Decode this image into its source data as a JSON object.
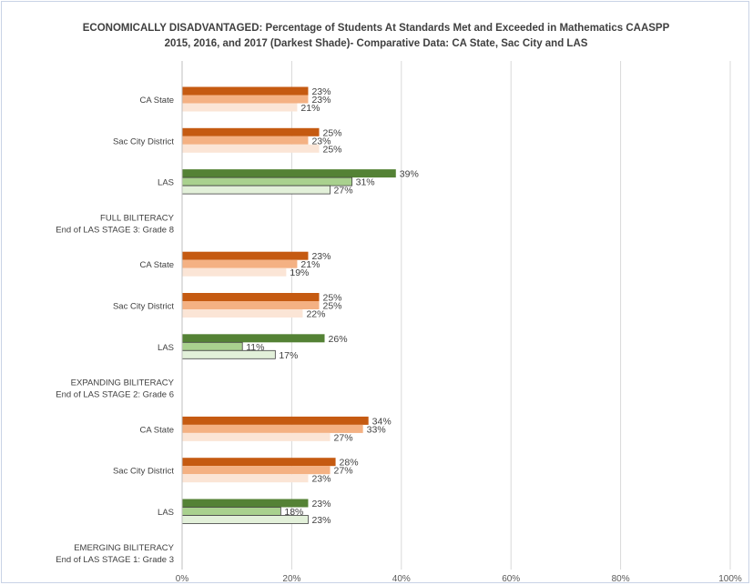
{
  "chart_data": {
    "type": "bar",
    "orientation": "horizontal",
    "title_line1": "ECONOMICALLY DISADVANTAGED: Percentage of Students At Standards Met and Exceeded in Mathematics CAASPP",
    "title_line2": "2015, 2016, and 2017 (Darkest Shade)- Comparative Data: CA State, Sac City and LAS",
    "xlim": [
      0,
      100
    ],
    "xticks": [
      "0%",
      "20%",
      "40%",
      "60%",
      "80%",
      "100%"
    ],
    "grid": true,
    "legend": "none",
    "colors": {
      "orange": [
        "#c55a11",
        "#f4b183",
        "#fbe5d6"
      ],
      "green": [
        "#548235",
        "#a9d18e",
        "#e2f0d9"
      ],
      "green_border": "#404040"
    },
    "rows": [
      {
        "label": "CA State",
        "values": [
          23,
          23,
          21
        ],
        "scheme": "orange"
      },
      {
        "label": "Sac City District",
        "values": [
          25,
          23,
          25
        ],
        "scheme": "orange"
      },
      {
        "label": "LAS",
        "values": [
          39,
          31,
          27
        ],
        "scheme": "green"
      },
      {
        "label": [
          "FULL BILITERACY",
          "End of LAS STAGE 3: Grade 8"
        ],
        "values": null
      },
      {
        "label": "CA State",
        "values": [
          23,
          21,
          19
        ],
        "scheme": "orange"
      },
      {
        "label": "Sac City District",
        "values": [
          25,
          25,
          22
        ],
        "scheme": "orange"
      },
      {
        "label": "LAS",
        "values": [
          26,
          11,
          17
        ],
        "scheme": "green"
      },
      {
        "label": [
          "EXPANDING BILITERACY",
          "End of LAS STAGE 2: Grade 6"
        ],
        "values": null
      },
      {
        "label": "CA State",
        "values": [
          34,
          33,
          27
        ],
        "scheme": "orange"
      },
      {
        "label": "Sac City District",
        "values": [
          28,
          27,
          23
        ],
        "scheme": "orange"
      },
      {
        "label": "LAS",
        "values": [
          23,
          18,
          23
        ],
        "scheme": "green"
      },
      {
        "label": [
          "EMERGING BILITERACY",
          "End of LAS STAGE 1: Grade 3"
        ],
        "values": null
      }
    ]
  }
}
